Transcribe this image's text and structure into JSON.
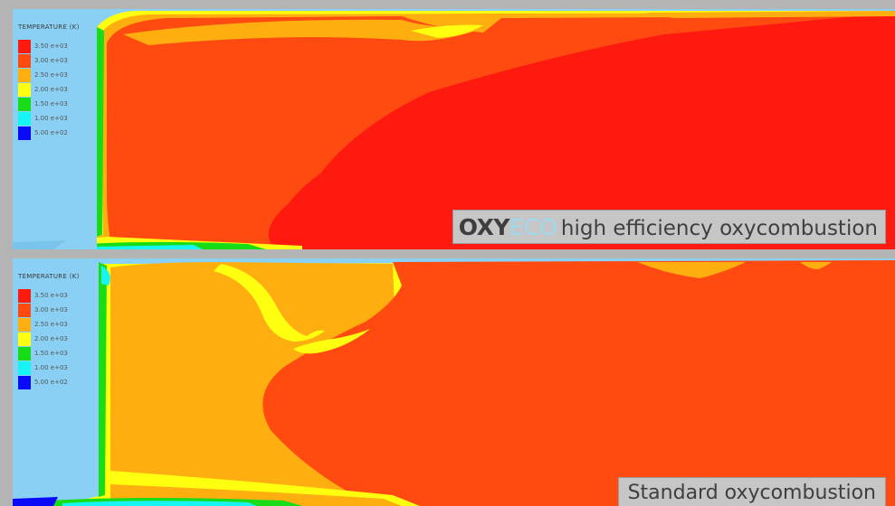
{
  "colors": {
    "background": "#b4b4b4",
    "left_band": "#8ad0f4",
    "t_350": "#ff1a10",
    "t_300": "#ff4a10",
    "t_250": "#ffae10",
    "t_200": "#ffff10",
    "t_150": "#18dc18",
    "t_100": "#18f4f4",
    "t_050": "#0a0af8",
    "caption_bg": "#c6c6c6",
    "brand_eco": "#9ed8ef"
  },
  "top_panel": {
    "legend_title": "TEMPERATURE (K)",
    "legend_items": [
      {
        "label": "3.50 e+03",
        "color": "#ff1a10"
      },
      {
        "label": "3.00 e+03",
        "color": "#ff4a10"
      },
      {
        "label": "2.50 e+03",
        "color": "#ffae10"
      },
      {
        "label": "2.00 e+03",
        "color": "#ffff10"
      },
      {
        "label": "1.50 e+03",
        "color": "#18dc18"
      },
      {
        "label": "1.00 e+03",
        "color": "#18f4f4"
      },
      {
        "label": "5.00 e+02",
        "color": "#0a0af8"
      }
    ],
    "caption": {
      "brand_oxy": "OXY",
      "brand_eco": "ECO",
      "text": "high efficiency oxycombustion"
    }
  },
  "bottom_panel": {
    "legend_title": "TEMPERATURE (K)",
    "legend_items": [
      {
        "label": "3.50 e+03",
        "color": "#ff1a10"
      },
      {
        "label": "3.00 e+03",
        "color": "#ff4a10"
      },
      {
        "label": "2.50 e+03",
        "color": "#ffae10"
      },
      {
        "label": "2.00 e+03",
        "color": "#ffff10"
      },
      {
        "label": "1.50 e+03",
        "color": "#18dc18"
      },
      {
        "label": "1.00 e+03",
        "color": "#18f4f4"
      },
      {
        "label": "5.00 e+02",
        "color": "#0a0af8"
      }
    ],
    "caption": {
      "text": "Standard oxycombustion"
    }
  }
}
